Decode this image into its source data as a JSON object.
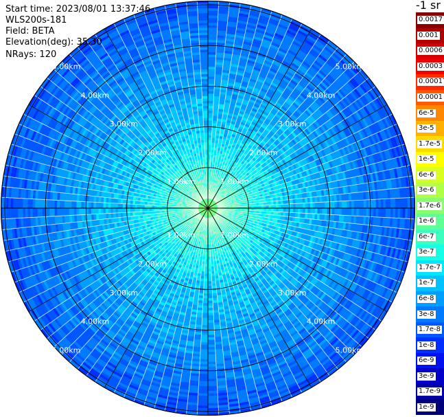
{
  "header": {
    "start_time": "Start time: 2023/08/01 13:37:46",
    "instrument": "WLS200s-181",
    "field": "Field: BETA",
    "elevation": "Elevation(deg): 35.30",
    "nrays": "NRays: 120"
  },
  "colorbar": {
    "title": "-1 sr",
    "segments": [
      {
        "label": "0.0017",
        "color": "#8b0000"
      },
      {
        "label": "0.001",
        "color": "#b00000"
      },
      {
        "label": "0.0006",
        "color": "#d40000"
      },
      {
        "label": "0.0003",
        "color": "#f50000"
      },
      {
        "label": "0.00017",
        "color": "#ff2a00"
      },
      {
        "label": "0.0001",
        "color": "#ff5a00"
      },
      {
        "label": "6e-5",
        "color": "#ff8800"
      },
      {
        "label": "3e-5",
        "color": "#ffb000"
      },
      {
        "label": "1.7e-5",
        "color": "#ffd800"
      },
      {
        "label": "1e-5",
        "color": "#ffff00"
      },
      {
        "label": "6e-6",
        "color": "#d8ff1e"
      },
      {
        "label": "3e-6",
        "color": "#b0ff46"
      },
      {
        "label": "1.7e-6",
        "color": "#88ff6e"
      },
      {
        "label": "1e-6",
        "color": "#60ff96"
      },
      {
        "label": "6e-7",
        "color": "#3affbe"
      },
      {
        "label": "3e-7",
        "color": "#16ffe6"
      },
      {
        "label": "1.7e-7",
        "color": "#00e6ff"
      },
      {
        "label": "1e-7",
        "color": "#00c2ff"
      },
      {
        "label": "6e-8",
        "color": "#009eff"
      },
      {
        "label": "3e-8",
        "color": "#007aff"
      },
      {
        "label": "1.7e-8",
        "color": "#0056ff"
      },
      {
        "label": "1e-8",
        "color": "#0030ff"
      },
      {
        "label": "6e-9",
        "color": "#0010f0"
      },
      {
        "label": "3e-9",
        "color": "#0000c8"
      },
      {
        "label": "1.7e-9",
        "color": "#0000a0"
      },
      {
        "label": "1e-9",
        "color": "#000078"
      }
    ]
  },
  "chart_data": {
    "type": "heatmap",
    "projection": "polar-ppi",
    "field": "BETA",
    "nrays": 120,
    "range_rings_km": [
      1,
      2,
      3,
      4,
      5
    ],
    "max_range_km": 5.1,
    "ring_label": "km",
    "ring_tick_labels": [
      "1.00km",
      "2.00km",
      "3.00km",
      "4.00km",
      "5.00km"
    ],
    "azimuth_spokes_deg": [
      0,
      30,
      60,
      90,
      120,
      150,
      180,
      210,
      240,
      270,
      300,
      330
    ],
    "value_profile": {
      "range_km": [
        0,
        0.5,
        1.0,
        1.5,
        2.0,
        3.0,
        4.0,
        5.0
      ],
      "beta_sr_m": [
        1.7e-06,
        6e-07,
        3e-07,
        1.7e-07,
        1e-07,
        6e-08,
        3e-08,
        1.7e-08
      ]
    }
  }
}
